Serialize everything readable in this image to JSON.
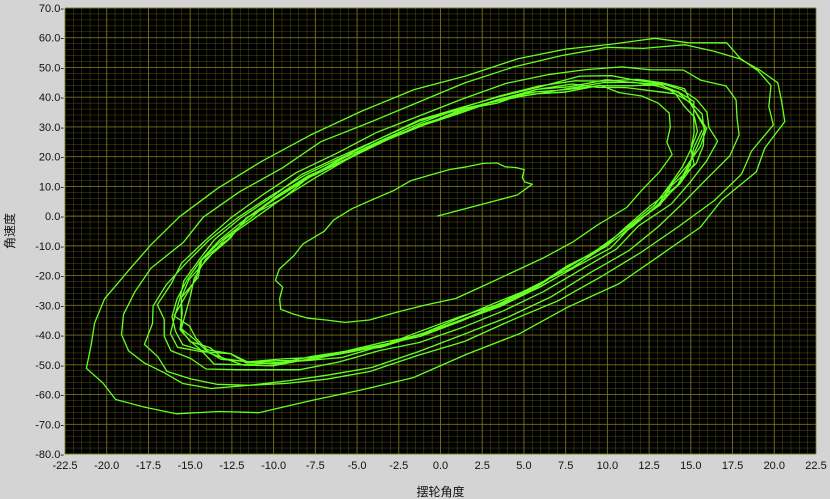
{
  "chart_data": {
    "type": "line",
    "title": "",
    "xlabel": "摆轮角度",
    "ylabel": "角速度",
    "xlim": [
      -22.5,
      22.5
    ],
    "ylim": [
      -80.0,
      70.0
    ],
    "x_ticks": [
      "-22.5",
      "-20.0",
      "-17.5",
      "-15.0",
      "-12.5",
      "-10.0",
      "-7.5",
      "-5.0",
      "-2.5",
      "0.0",
      "2.5",
      "5.0",
      "7.5",
      "10.0",
      "12.5",
      "15.0",
      "17.5",
      "20.0",
      "22.5"
    ],
    "y_ticks": [
      "70.0-",
      "60.0-",
      "50.0-",
      "40.0-",
      "30.0-",
      "20.0-",
      "10.0-",
      "0.0-",
      "-10.0-",
      "-20.0-",
      "-30.0-",
      "-40.0-",
      "-50.0-",
      "-60.0-",
      "-70.0-",
      "-80.0-"
    ],
    "grid": true,
    "background_color": "#000000",
    "grid_color": "#7a7a1e",
    "series_color": "#66ff22",
    "spiral": {
      "start_x": -0.2,
      "start_y": 0,
      "amp_start": 5,
      "amp_max": 21.5,
      "amp_end": 15.5,
      "v_ratio": 3.0,
      "tilt_phase": 0.72,
      "cycles": 11,
      "points_per_cycle": 42
    }
  }
}
